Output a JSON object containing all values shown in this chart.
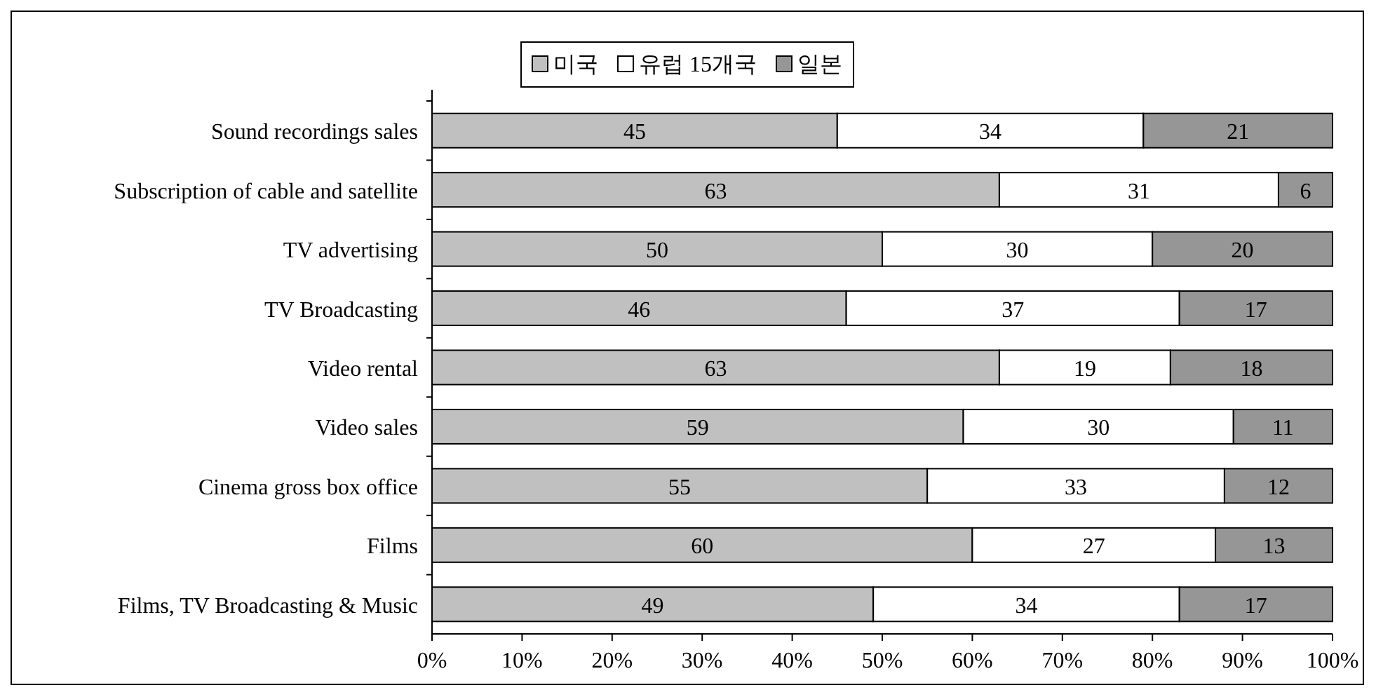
{
  "chart_data": {
    "type": "bar",
    "orientation": "horizontal",
    "stacked": true,
    "data_labels": true,
    "legend": "top",
    "grid": false,
    "categories": [
      "Sound recordings sales",
      "Subscription of cable and satellite",
      "TV advertising",
      "TV Broadcasting",
      "Video rental",
      "Video sales",
      "Cinema gross box office",
      "Films",
      "Films, TV Broadcasting & Music"
    ],
    "series": [
      {
        "name": "미국",
        "color": "#c0c0c0",
        "values": [
          45,
          63,
          50,
          46,
          63,
          59,
          55,
          60,
          49
        ]
      },
      {
        "name": "유럽 15개국",
        "color": "#ffffff",
        "values": [
          34,
          31,
          30,
          37,
          19,
          30,
          33,
          27,
          34
        ]
      },
      {
        "name": "일본",
        "color": "#969696",
        "values": [
          21,
          6,
          20,
          17,
          18,
          11,
          12,
          13,
          17
        ]
      }
    ],
    "xlim": [
      0,
      100
    ],
    "xticks": [
      {
        "value": 0,
        "label": "0%"
      },
      {
        "value": 10,
        "label": "10%"
      },
      {
        "value": 20,
        "label": "20%"
      },
      {
        "value": 30,
        "label": "30%"
      },
      {
        "value": 40,
        "label": "40%"
      },
      {
        "value": 50,
        "label": "50%"
      },
      {
        "value": 60,
        "label": "60%"
      },
      {
        "value": 70,
        "label": "70%"
      },
      {
        "value": 80,
        "label": "80%"
      },
      {
        "value": 90,
        "label": "90%"
      },
      {
        "value": 100,
        "label": "100%"
      }
    ]
  }
}
